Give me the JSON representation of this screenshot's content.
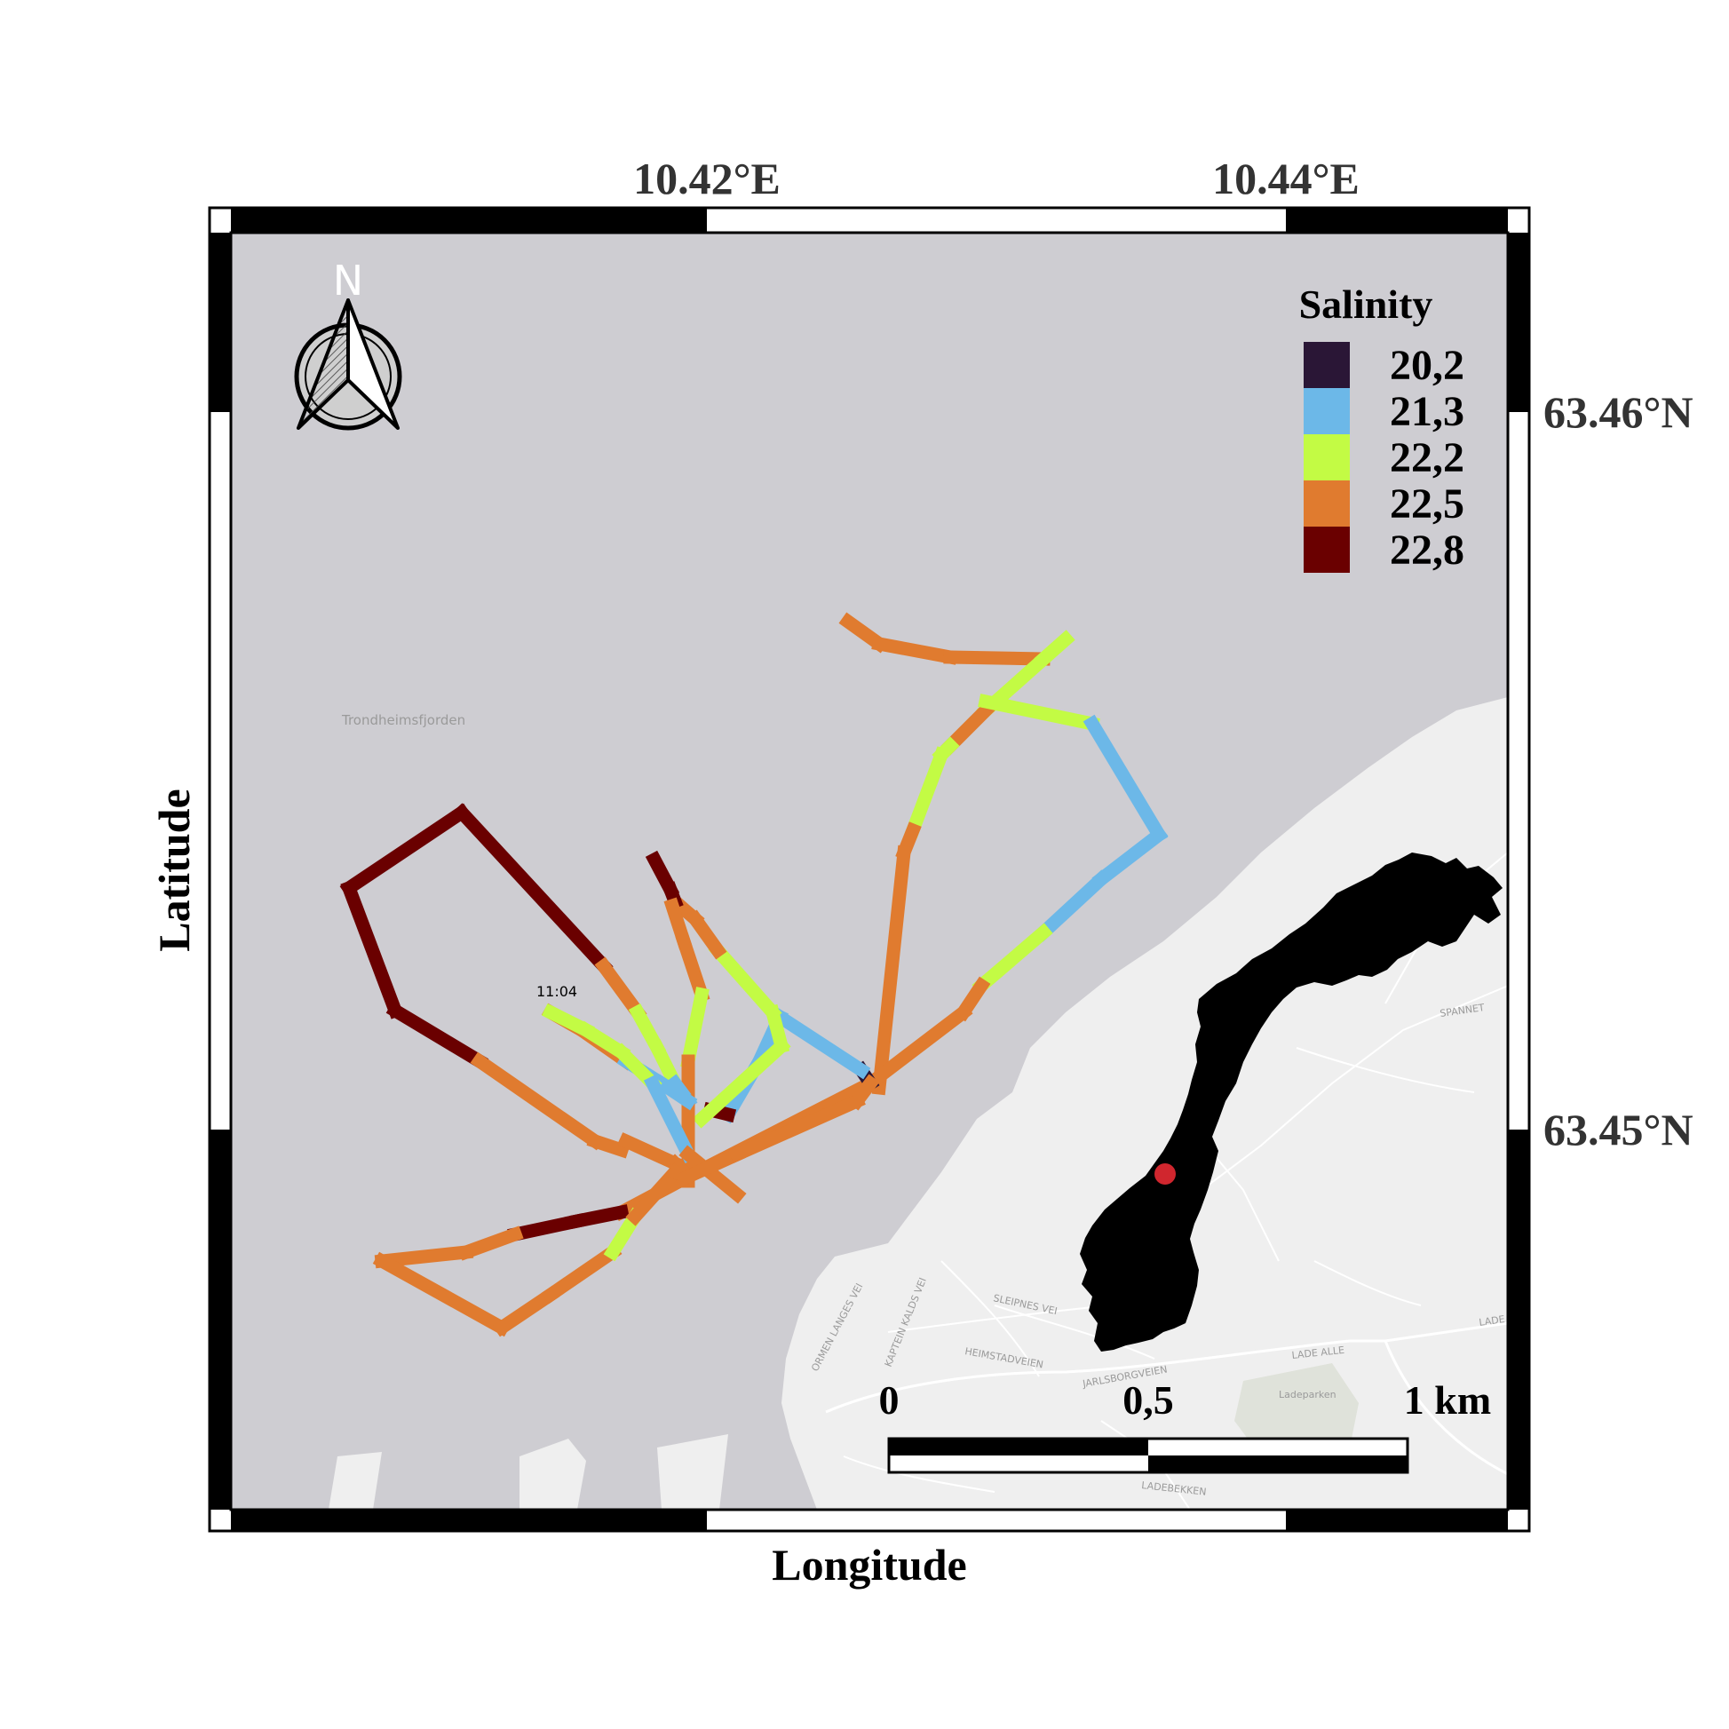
{
  "axes": {
    "x_title": "Longitude",
    "y_title": "Latitude",
    "x_ticks": [
      "10.42°E",
      "10.44°E"
    ],
    "y_ticks": [
      "63.46°N",
      "63.45°N"
    ]
  },
  "legend": {
    "title": "Salinity",
    "items": [
      {
        "label": "20,2",
        "color": "#2a1636"
      },
      {
        "label": "21,3",
        "color": "#6cb8e8"
      },
      {
        "label": "22,2",
        "color": "#c3fb44"
      },
      {
        "label": "22,5",
        "color": "#e07b2f"
      },
      {
        "label": "22,8",
        "color": "#6a0000"
      }
    ]
  },
  "north_arrow": {
    "label": "N",
    "icon": "north-arrow-icon"
  },
  "scale_bar": {
    "labels": [
      "0",
      "0,5",
      "1 km"
    ]
  },
  "annotation": {
    "time_label": "11:04"
  },
  "basemap": {
    "water_label": "Trondheimsfjorden",
    "streets": [
      "SPANNET",
      "SLEIPNES VEI",
      "HEIMSTADVEIEN",
      "JARLSBORGVEIEN",
      "LADE ALLE",
      "LADEBEKKEN",
      "Ladeparken",
      "ORMEN LANGES VEI",
      "KAPTEIN KALDS VEI",
      "LADE"
    ]
  },
  "inset": {
    "name": "norway-inset-map",
    "location_marker_color": "#d0262e"
  },
  "colors": {
    "water": "#cecdd2",
    "land": "#efefef",
    "frame_dark": "#000000"
  }
}
